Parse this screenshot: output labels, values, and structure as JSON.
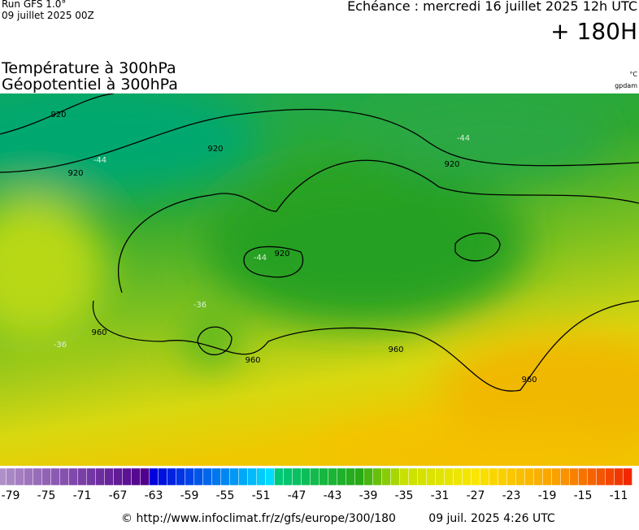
{
  "header": {
    "run": "Run GFS 1.0°",
    "run_date": "09 juillet 2025 00Z",
    "valid": "Echéance : mercredi 16 juillet 2025 12h UTC",
    "lead": "+ 180H",
    "title_temperature": "Température à 300hPa",
    "title_geopotential": "Géopotentiel à 300hPa",
    "unit_temperature": "°C",
    "unit_geopotential": "gpdam"
  },
  "map": {
    "contour_labels": [
      "920",
      "920",
      "920",
      "920",
      "920",
      "960",
      "960",
      "960",
      "960",
      "-44",
      "-44",
      "-44",
      "-36",
      "-36"
    ]
  },
  "scale": {
    "ticks": [
      -79,
      -75,
      -71,
      -67,
      -63,
      -59,
      -55,
      -51,
      -47,
      -43,
      -39,
      -35,
      -31,
      -27,
      -23,
      -19,
      -15,
      -11
    ]
  },
  "footer": {
    "source": "© http://www.infoclimat.fr/z/gfs/europe/300/180",
    "generated": "09 juil. 2025  4:26 UTC"
  }
}
